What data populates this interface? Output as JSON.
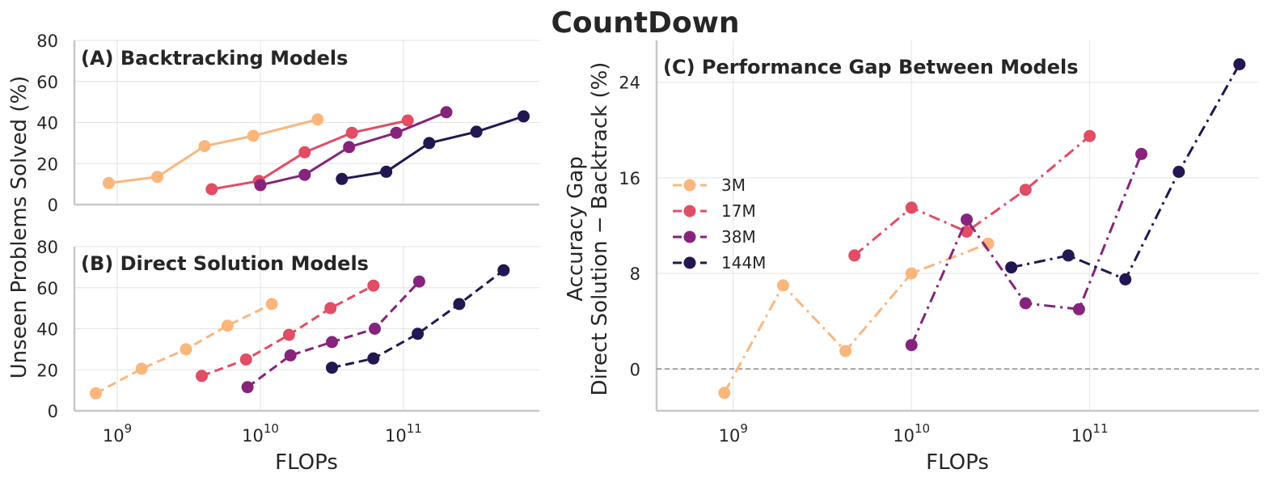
{
  "title": "CountDown",
  "y_label": "Unseen Problems Solved (%)",
  "legend_entries": [
    "3M",
    "17M",
    "38M",
    "144M"
  ],
  "colors": {
    "3M": "#fbb67c",
    "17M": "#e14d65",
    "38M": "#86237c",
    "144M": "#231651"
  },
  "chart_data": [
    {
      "id": "A",
      "type": "line",
      "title": "(A) Backtracking Models",
      "xlabel": "",
      "ylabel": "Unseen Problems Solved (%)",
      "x_scale": "log",
      "xlim_log10": [
        8.7,
        11.95
      ],
      "ylim": [
        0,
        80
      ],
      "y_ticks": [
        "0",
        "20",
        "40",
        "60",
        "80"
      ],
      "x_ticks": [],
      "line_style": "solid",
      "series": [
        {
          "name": "3M",
          "x_log10": [
            8.94,
            9.28,
            9.61,
            9.95,
            10.4
          ],
          "values": [
            10.5,
            13.5,
            28.5,
            33.5,
            41.5
          ]
        },
        {
          "name": "17M",
          "x_log10": [
            9.66,
            9.99,
            10.31,
            10.64,
            11.03
          ],
          "values": [
            7.5,
            11.5,
            25.5,
            35.0,
            41.0
          ]
        },
        {
          "name": "38M",
          "x_log10": [
            10.0,
            10.31,
            10.62,
            10.95,
            11.3
          ],
          "values": [
            9.5,
            14.5,
            28.0,
            35.0,
            45.0
          ]
        },
        {
          "name": "144M",
          "x_log10": [
            10.57,
            10.88,
            11.18,
            11.51,
            11.84
          ],
          "values": [
            12.5,
            16.0,
            30.0,
            35.5,
            43.0
          ]
        }
      ]
    },
    {
      "id": "B",
      "type": "line",
      "title": "(B) Direct Solution Models",
      "xlabel": "FLOPs",
      "ylabel": "Unseen Problems Solved (%)",
      "x_scale": "log",
      "xlim_log10": [
        8.7,
        11.95
      ],
      "ylim": [
        0,
        80
      ],
      "y_ticks": [
        "0",
        "20",
        "40",
        "60",
        "80"
      ],
      "x_ticks": [
        {
          "base": "10",
          "exp": "9",
          "log10": 9
        },
        {
          "base": "10",
          "exp": "10",
          "log10": 10
        },
        {
          "base": "10",
          "exp": "11",
          "log10": 11
        }
      ],
      "line_style": "dashed",
      "series": [
        {
          "name": "3M",
          "x_log10": [
            8.85,
            9.17,
            9.48,
            9.77,
            10.08
          ],
          "values": [
            8.5,
            20.5,
            30.0,
            41.5,
            52.0
          ]
        },
        {
          "name": "17M",
          "x_log10": [
            9.59,
            9.9,
            10.2,
            10.49,
            10.79
          ],
          "values": [
            17.0,
            25.0,
            37.0,
            50.0,
            61.0
          ]
        },
        {
          "name": "38M",
          "x_log10": [
            9.91,
            10.21,
            10.5,
            10.8,
            11.11
          ],
          "values": [
            11.5,
            27.0,
            33.5,
            40.0,
            63.0
          ]
        },
        {
          "name": "144M",
          "x_log10": [
            10.5,
            10.79,
            11.1,
            11.39,
            11.7
          ],
          "values": [
            21.0,
            25.5,
            37.5,
            52.0,
            68.5
          ]
        }
      ]
    },
    {
      "id": "C",
      "type": "line",
      "title": "(C) Performance Gap Between Models",
      "xlabel": "FLOPs",
      "ylabel_lines": [
        "Accuracy Gap",
        "Direct Solution − Backtrack (%)"
      ],
      "x_scale": "log",
      "xlim_log10": [
        8.57,
        11.95
      ],
      "ylim": [
        -3.5,
        27.5
      ],
      "y_ticks": [
        "0",
        "8",
        "16",
        "24"
      ],
      "x_ticks": [
        {
          "base": "10",
          "exp": "9",
          "log10": 9
        },
        {
          "base": "10",
          "exp": "10",
          "log10": 10
        },
        {
          "base": "10",
          "exp": "11",
          "log10": 11
        }
      ],
      "reference_line": 0,
      "line_style": "dashdot",
      "legend": "center-left",
      "series": [
        {
          "name": "3M",
          "x_log10": [
            8.95,
            9.28,
            9.63,
            10.0,
            10.43
          ],
          "values": [
            -2.0,
            7.0,
            1.5,
            8.0,
            10.5
          ]
        },
        {
          "name": "17M",
          "x_log10": [
            9.68,
            10.0,
            10.31,
            10.64,
            11.0
          ],
          "values": [
            9.5,
            13.5,
            11.5,
            15.0,
            19.5
          ]
        },
        {
          "name": "38M",
          "x_log10": [
            10.0,
            10.31,
            10.64,
            10.94,
            11.29
          ],
          "values": [
            2.0,
            12.5,
            5.5,
            5.0,
            18.0
          ]
        },
        {
          "name": "144M",
          "x_log10": [
            10.56,
            10.88,
            11.2,
            11.5,
            11.84
          ],
          "values": [
            8.5,
            9.5,
            7.5,
            16.5,
            25.5
          ]
        }
      ]
    }
  ]
}
